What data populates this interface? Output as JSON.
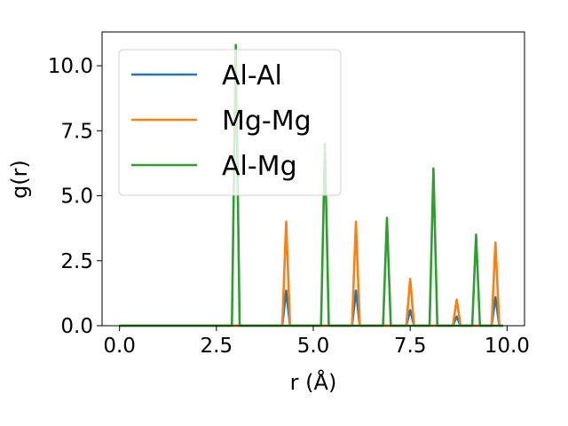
{
  "chart_data": {
    "type": "line",
    "title": "",
    "xlabel": "r (Å)",
    "ylabel": "g(r)",
    "xlim": [
      -0.45,
      10.45
    ],
    "ylim": [
      0,
      11.3
    ],
    "xticks": [
      "0.0",
      "2.5",
      "5.0",
      "7.5",
      "10.0"
    ],
    "yticks": [
      "0.0",
      "2.5",
      "5.0",
      "7.5",
      "10.0"
    ],
    "legend_position": "upper-left",
    "grid": false,
    "peak_halfwidth": 0.1,
    "series": [
      {
        "name": "Al-Al",
        "color": "#1f77b4",
        "peaks": [
          [
            4.3,
            1.35
          ],
          [
            6.1,
            1.35
          ],
          [
            7.5,
            0.6
          ],
          [
            8.7,
            0.35
          ],
          [
            9.7,
            1.1
          ]
        ]
      },
      {
        "name": "Mg-Mg",
        "color": "#ff7f0e",
        "peaks": [
          [
            4.3,
            4.0
          ],
          [
            6.1,
            4.0
          ],
          [
            7.5,
            1.8
          ],
          [
            8.7,
            1.0
          ],
          [
            9.7,
            3.2
          ]
        ]
      },
      {
        "name": "Al-Mg",
        "color": "#2ca02c",
        "peaks": [
          [
            3.0,
            10.8
          ],
          [
            5.3,
            7.0
          ],
          [
            6.9,
            4.15
          ],
          [
            8.1,
            6.05
          ],
          [
            9.2,
            3.5
          ]
        ]
      }
    ]
  }
}
